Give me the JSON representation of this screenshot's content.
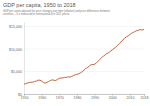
{
  "chart_data": {
    "type": "line",
    "title": "GDP per capita, 1950 to 2018",
    "subtitle": [
      "GDP per capita adjusted for price changes over time (inflation) and price differences between",
      "countries – it is measured in international-$ in 2011 prices."
    ],
    "x": [
      1950,
      1951,
      1952,
      1953,
      1954,
      1955,
      1956,
      1957,
      1958,
      1959,
      1960,
      1961,
      1962,
      1963,
      1964,
      1965,
      1966,
      1967,
      1968,
      1969,
      1970,
      1971,
      1972,
      1973,
      1974,
      1975,
      1976,
      1977,
      1978,
      1979,
      1980,
      1981,
      1982,
      1983,
      1984,
      1985,
      1986,
      1987,
      1988,
      1989,
      1990,
      1991,
      1992,
      1993,
      1994,
      1995,
      1996,
      1997,
      1998,
      1999,
      2000,
      2001,
      2002,
      2003,
      2004,
      2005,
      2006,
      2007,
      2008,
      2009,
      2010,
      2011,
      2012,
      2013,
      2014,
      2015,
      2016,
      2017,
      2018
    ],
    "values": [
      2200,
      2300,
      2450,
      2550,
      2600,
      2650,
      2800,
      2850,
      3100,
      3050,
      2900,
      2500,
      2450,
      2600,
      2800,
      3000,
      3150,
      3050,
      3000,
      3250,
      3500,
      3550,
      3550,
      3700,
      3700,
      3800,
      3750,
      3900,
      4100,
      4250,
      4400,
      4500,
      4700,
      4950,
      5300,
      5650,
      5900,
      6200,
      6500,
      6550,
      6600,
      6900,
      7300,
      7700,
      8100,
      8400,
      8700,
      9000,
      9200,
      9500,
      9800,
      10100,
      10400,
      10800,
      11200,
      11600,
      12000,
      12400,
      12700,
      12900,
      13200,
      13500,
      13700,
      13900,
      14100,
      14200,
      14300,
      14200,
      14400
    ],
    "color": "#b8562a",
    "xlim": [
      1950,
      2018
    ],
    "xticks": [
      1950,
      1960,
      1970,
      1980,
      1990,
      2000,
      2010,
      2018
    ],
    "ylim": [
      0,
      16000
    ],
    "yticks": [
      {
        "value": 0,
        "label": "$0"
      },
      {
        "value": 5000,
        "label": "$5,000"
      },
      {
        "value": 10000,
        "label": "$10,000"
      },
      {
        "value": 15000,
        "label": "$15,000"
      }
    ],
    "grid": true
  }
}
